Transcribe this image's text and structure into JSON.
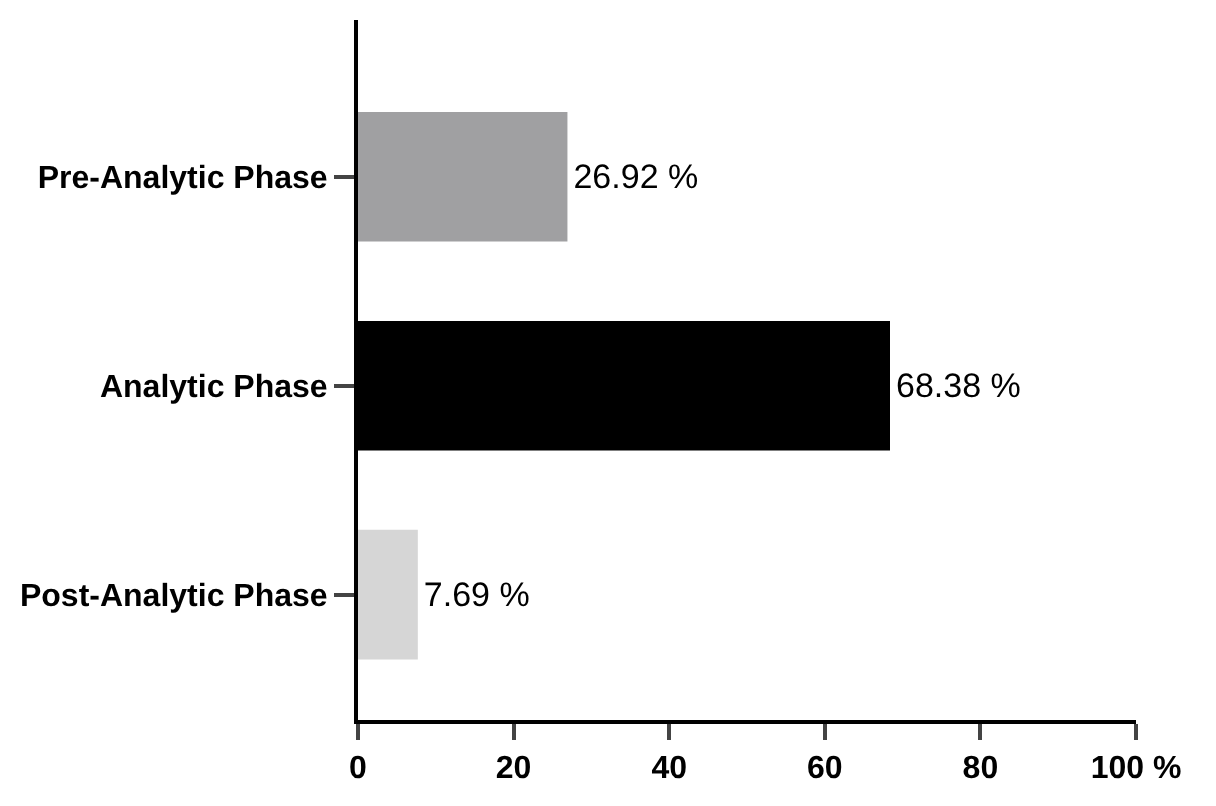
{
  "chart_data": {
    "type": "bar",
    "orientation": "horizontal",
    "categories": [
      "Pre-Analytic Phase",
      "Analytic Phase",
      "Post-Analytic Phase"
    ],
    "values": [
      26.92,
      68.38,
      7.69
    ],
    "colors": [
      "#a0a0a2",
      "#000000",
      "#d6d6d6"
    ],
    "value_labels": [
      "26.92 %",
      "68.38 %",
      "7.69 %"
    ],
    "xlim": [
      0,
      100
    ],
    "xticks": [
      0,
      20,
      40,
      60,
      80,
      {
        "value": 100,
        "label": "100 %"
      }
    ],
    "tick_labels": [
      "x",
      "y"
    ]
  }
}
